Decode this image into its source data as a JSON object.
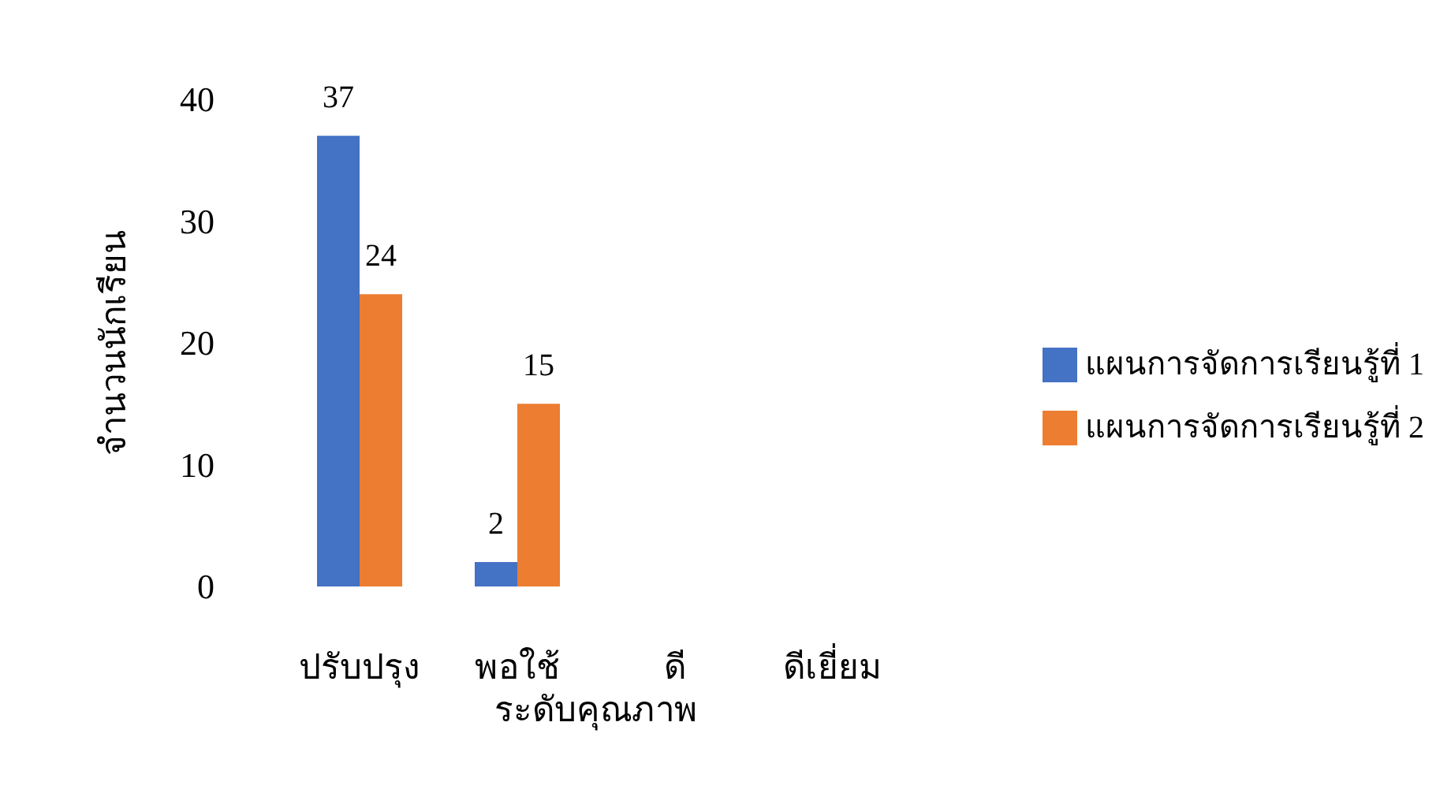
{
  "chart_data": {
    "type": "bar",
    "xlabel": "ระดับคุณภาพ",
    "ylabel": "จำนวนนักเรียน",
    "categories": [
      "ปรับปรุง",
      "พอใช้",
      "ดี",
      "ดีเยี่ยม"
    ],
    "series": [
      {
        "name": "แผนการจัดการเรียนรู้ที่ 1",
        "color": "#4472c4",
        "values": [
          37,
          2,
          null,
          null
        ]
      },
      {
        "name": "แผนการจัดการเรียนรู้ที่ 2",
        "color": "#ed7d31",
        "values": [
          24,
          15,
          null,
          null
        ]
      }
    ],
    "ylim": [
      0,
      40
    ],
    "yticks": [
      0,
      10,
      20,
      30,
      40
    ],
    "grid": false,
    "legend": "right",
    "data_labels": true
  }
}
